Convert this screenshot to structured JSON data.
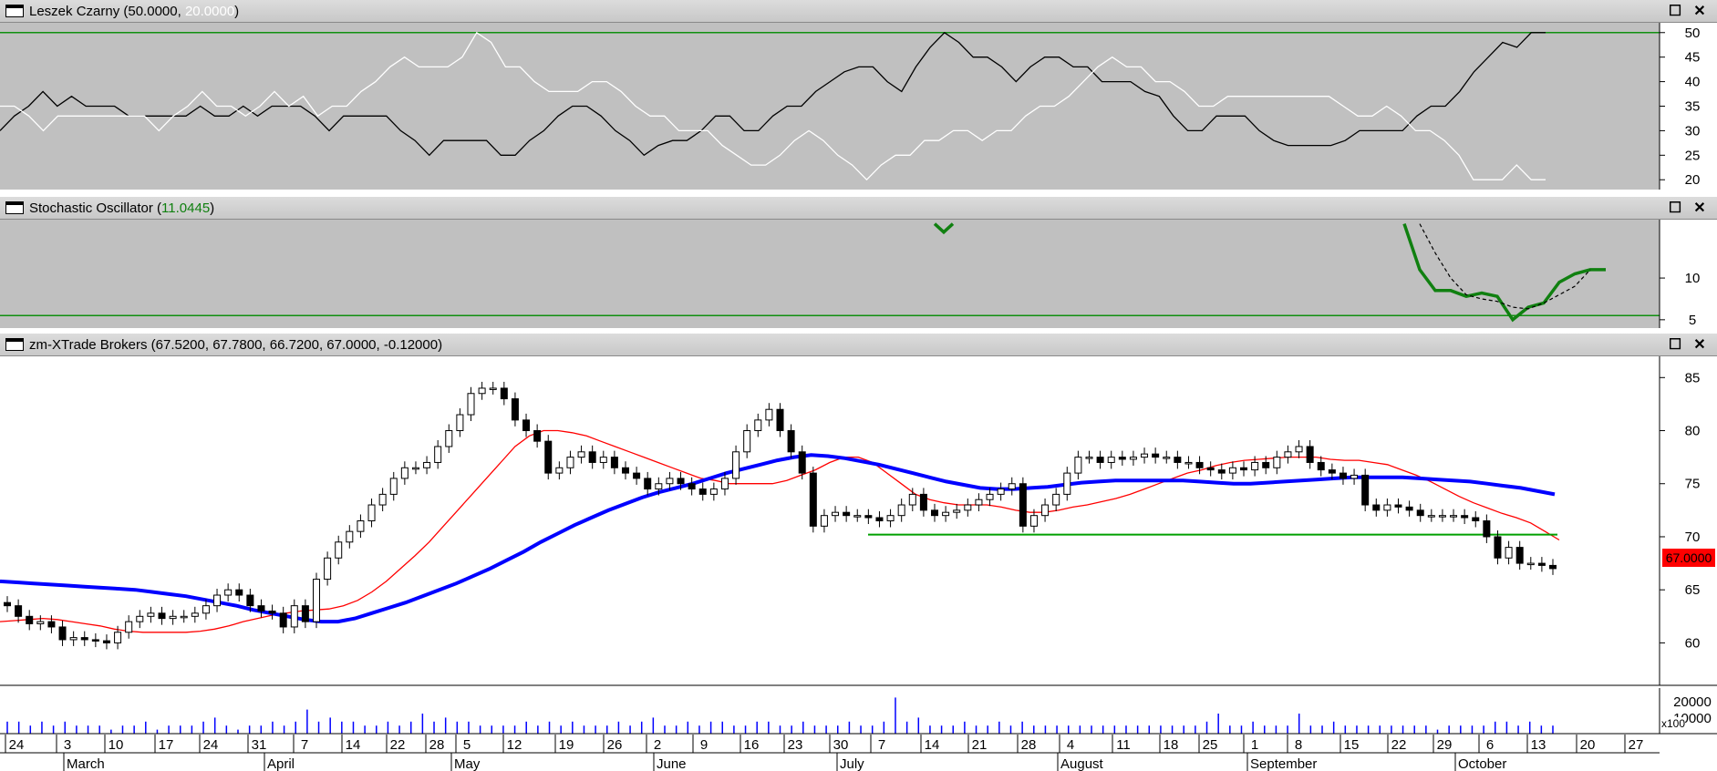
{
  "colors": {
    "panel_gray": "#c0c0c0",
    "price_bg": "#ffffff",
    "adx_plus": "#000000",
    "adx_minus": "#ffffff",
    "ref_line": "#109010",
    "stoch_k": "#108010",
    "stoch_d": "#000000",
    "ma_fast": "#ff0000",
    "ma_slow": "#0000ff",
    "support": "#00a000",
    "volume": "#0000ff",
    "last_price_bg": "#ff0000",
    "title_green": "#108010",
    "title_white": "#ffffff"
  },
  "panels": [
    {
      "id": "leszek",
      "title": "Leszek Czarny (50.0000,",
      "title_value2": "20.0000",
      "title_close": ")",
      "icons": [
        "maximize-icon",
        "close-icon"
      ]
    },
    {
      "id": "stochastic",
      "title": "Stochastic Oscillator (",
      "title_value": "11.0445",
      "title_close": ")",
      "icons": [
        "maximize-icon",
        "close-icon"
      ]
    },
    {
      "id": "price",
      "title": "zm-XTrade Brokers (67.5200, 67.7800, 66.7200, 67.0000, -0.12000)",
      "icons": [
        "maximize-icon",
        "close-icon"
      ]
    }
  ],
  "buttons": {
    "maximize": "☐",
    "close": "✕"
  },
  "last_price_label": "67.0000",
  "volume_scale_label": "x100",
  "chart_data": [
    {
      "panel": "leszek",
      "type": "line",
      "title": "Leszek Czarny (50.0000, 20.0000)",
      "ylim": [
        18,
        52
      ],
      "yticks": [
        20,
        25,
        30,
        35,
        40,
        45,
        50
      ],
      "reference_lines": [
        50
      ],
      "series": [
        {
          "role": "black",
          "values": [
            30,
            33,
            35,
            38,
            35,
            37,
            35,
            35,
            35,
            33,
            33,
            33,
            33,
            33,
            35,
            33,
            33,
            35,
            33,
            35,
            35,
            35,
            33,
            30,
            33,
            33,
            33,
            33,
            30,
            28,
            25,
            28,
            28,
            28,
            28,
            25,
            25,
            28,
            30,
            33,
            35,
            35,
            33,
            30,
            28,
            25,
            27,
            28,
            28,
            30,
            33,
            33,
            30,
            30,
            33,
            35,
            35,
            38,
            40,
            42,
            43,
            43,
            40,
            38,
            43,
            47,
            50,
            48,
            45,
            45,
            43,
            40,
            43,
            45,
            45,
            43,
            43,
            40,
            40,
            40,
            38,
            37,
            33,
            30,
            30,
            33,
            33,
            33,
            30,
            28,
            27,
            27,
            27,
            27,
            28,
            30,
            30,
            30,
            30,
            33,
            35,
            35,
            38,
            42,
            45,
            48,
            47,
            50,
            50
          ]
        },
        {
          "role": "white",
          "values": [
            35,
            35,
            33,
            30,
            33,
            33,
            33,
            33,
            33,
            33,
            33,
            30,
            33,
            35,
            38,
            35,
            35,
            33,
            35,
            38,
            35,
            37,
            33,
            35,
            35,
            38,
            40,
            43,
            45,
            43,
            43,
            43,
            45,
            50,
            48,
            43,
            43,
            40,
            38,
            38,
            38,
            40,
            40,
            38,
            35,
            33,
            33,
            30,
            30,
            30,
            27,
            25,
            23,
            23,
            25,
            28,
            30,
            28,
            25,
            23,
            20,
            23,
            25,
            25,
            28,
            28,
            30,
            30,
            28,
            30,
            30,
            33,
            35,
            35,
            37,
            40,
            43,
            45,
            43,
            43,
            40,
            40,
            38,
            35,
            35,
            37,
            37,
            37,
            37,
            37,
            37,
            37,
            37,
            35,
            33,
            33,
            35,
            33,
            30,
            30,
            28,
            25,
            20,
            20,
            20,
            23,
            20,
            20
          ]
        }
      ]
    },
    {
      "panel": "stochastic",
      "type": "line",
      "title": "Stochastic Oscillator (11.0445)",
      "ylim": [
        4,
        17
      ],
      "yticks": [
        5,
        10
      ],
      "reference_lines": [
        5.5
      ],
      "series": [
        {
          "role": "%K",
          "segments": [
            {
              "start_index": 66,
              "values": [
                16.5,
                15.5,
                16.5
              ]
            },
            {
              "start_index": 99,
              "values": [
                16.5,
                11,
                8.5,
                8.5,
                7.8,
                8.2,
                7.8,
                5,
                6.5,
                7,
                9.5,
                10.5,
                11,
                11
              ]
            }
          ]
        },
        {
          "role": "%D",
          "segments": [
            {
              "start_index": 100,
              "values": [
                16.5,
                13,
                10,
                8,
                7.5,
                7.2,
                6.5,
                6.3,
                7,
                8,
                9,
                11
              ]
            }
          ]
        }
      ]
    },
    {
      "panel": "price",
      "type": "candlestick",
      "title": "zm-XTrade Brokers",
      "ylim": [
        56,
        87
      ],
      "yticks": [
        60,
        65,
        70,
        75,
        80,
        85
      ],
      "last_price": 67.0,
      "support_line": {
        "value": 70.2,
        "from_index": 61,
        "to_index": 109
      },
      "moving_averages": [
        {
          "role": "fast",
          "values": [
            62,
            62.1,
            62.2,
            62.3,
            62.2,
            62,
            61.8,
            61.6,
            61.3,
            61.1,
            61,
            61,
            61,
            61,
            61.1,
            61.3,
            61.6,
            62,
            62.3,
            62.6,
            62.8,
            63,
            63.1,
            63.2,
            63.5,
            64,
            64.8,
            65.8,
            67,
            68.2,
            69.5,
            71,
            72.5,
            74,
            75.5,
            77,
            78.5,
            79.5,
            80,
            80,
            79.8,
            79.5,
            79,
            78.5,
            78,
            77.5,
            77,
            76.5,
            76,
            75.5,
            75.3,
            75,
            75,
            75,
            75,
            75.3,
            75.8,
            76.3,
            77,
            77.5,
            77.5,
            77,
            76,
            75,
            74,
            73.5,
            73.2,
            73,
            73,
            73,
            72.8,
            72.5,
            72.3,
            72.3,
            72.5,
            72.8,
            73,
            73.3,
            73.6,
            74,
            74.5,
            75,
            75.5,
            76,
            76.3,
            76.7,
            77,
            77.2,
            77.3,
            77.4,
            77.5,
            77.5,
            77.5,
            77.3,
            77.2,
            77.2,
            77,
            76.8,
            76.3,
            75.8,
            75.2,
            74.5,
            73.8,
            73.2,
            72.7,
            72.2,
            71.8,
            71.3,
            70.5,
            69.7
          ]
        },
        {
          "role": "slow",
          "values": [
            65.8,
            65.7,
            65.6,
            65.5,
            65.4,
            65.3,
            65.2,
            65.1,
            65,
            64.8,
            64.6,
            64.4,
            64.1,
            63.8,
            63.5,
            63.1,
            62.8,
            62.5,
            62.2,
            62,
            62,
            62.3,
            62.8,
            63.3,
            63.8,
            64.4,
            65,
            65.6,
            66.3,
            67,
            67.8,
            68.6,
            69.5,
            70.3,
            71.1,
            71.8,
            72.5,
            73.1,
            73.7,
            74.2,
            74.6,
            75,
            75.5,
            76,
            76.4,
            76.8,
            77.2,
            77.5,
            77.7,
            77.6,
            77.4,
            77.1,
            76.8,
            76.4,
            76,
            75.6,
            75.2,
            74.9,
            74.6,
            74.5,
            74.5,
            74.6,
            74.7,
            74.9,
            75.1,
            75.2,
            75.3,
            75.3,
            75.3,
            75.3,
            75.3,
            75.2,
            75.1,
            75,
            75,
            75.1,
            75.2,
            75.3,
            75.4,
            75.5,
            75.6,
            75.6,
            75.6,
            75.6,
            75.5,
            75.4,
            75.3,
            75.2,
            75,
            74.8,
            74.6,
            74.3,
            74
          ]
        }
      ],
      "closes": [
        63.5,
        62.5,
        61.8,
        62,
        61.5,
        60.3,
        60.5,
        60.3,
        60.2,
        60,
        61,
        62,
        62.5,
        62.8,
        62.3,
        62.5,
        62.5,
        62.8,
        63.5,
        64.5,
        65,
        64.5,
        63.5,
        63,
        62.8,
        61.5,
        63.5,
        62,
        66,
        68,
        69.5,
        70.5,
        71.5,
        73,
        74,
        75.5,
        76.5,
        76.5,
        77,
        78.5,
        80,
        81.5,
        83.5,
        84,
        84,
        83,
        81,
        80,
        79,
        76,
        76.5,
        77.5,
        78,
        77,
        77.5,
        76.5,
        76,
        75.5,
        74.5,
        75,
        75.5,
        75,
        74.5,
        74,
        74.5,
        75.5,
        78,
        80,
        81,
        82,
        80,
        78,
        76,
        71,
        72,
        72.3,
        72,
        72,
        71.8,
        71.5,
        72,
        73,
        74,
        72.5,
        72,
        72.3,
        72.5,
        73,
        73.5,
        74,
        74.5,
        75,
        71,
        72,
        73,
        74,
        76,
        77.5,
        77.5,
        77,
        77.5,
        77.3,
        77.5,
        77.8,
        77.5,
        77.5,
        77,
        77,
        76.5,
        76.3,
        76,
        76.5,
        76.3,
        77,
        76.5,
        77.5,
        78,
        78.5,
        77,
        76.3,
        76,
        75.5,
        75.8,
        73,
        72.5,
        73,
        72.8,
        72.5,
        72,
        72,
        72,
        72,
        71.8,
        71.5,
        70,
        68,
        69,
        67.5,
        67.5,
        67.3,
        67
      ]
    },
    {
      "panel": "volume",
      "type": "bar",
      "values": [
        3,
        3,
        2,
        3,
        2,
        3,
        2,
        2,
        2,
        1,
        2,
        2,
        3,
        1,
        2,
        2,
        2,
        3,
        4,
        2,
        1,
        2,
        2,
        3,
        2,
        3,
        6,
        3,
        4,
        3,
        3,
        2,
        2,
        3,
        2,
        3,
        5,
        3,
        4,
        3,
        3,
        2,
        2,
        2,
        2,
        3,
        2,
        3,
        2,
        3,
        2,
        2,
        2,
        3,
        2,
        3,
        4,
        2,
        2,
        3,
        2,
        3,
        3,
        2,
        2,
        3,
        3,
        2,
        2,
        3,
        2,
        2,
        2,
        3,
        2,
        2,
        3,
        9,
        3,
        4,
        2,
        2,
        2,
        3,
        2,
        2,
        3,
        2,
        3,
        2,
        2,
        2,
        2,
        2,
        2,
        2,
        2,
        2,
        2,
        2,
        2,
        2,
        2,
        2,
        3,
        5,
        2,
        2,
        3,
        2,
        2,
        2,
        5,
        2,
        2,
        3,
        2,
        2,
        2,
        2,
        2,
        2,
        2,
        2,
        1,
        2,
        2,
        2,
        2,
        3,
        3,
        2,
        3,
        2,
        2
      ]
    }
  ],
  "date_axis": {
    "day_labels": [
      "24",
      "3",
      "10",
      "17",
      "24",
      "31",
      "7",
      "14",
      "22",
      "28",
      "5",
      "12",
      "19",
      "26",
      "2",
      "9",
      "16",
      "23",
      "30",
      "7",
      "14",
      "21",
      "28",
      "4",
      "11",
      "18",
      "25",
      "1",
      "8",
      "15",
      "22",
      "29",
      "6",
      "13",
      "20",
      "27"
    ],
    "month_labels": [
      "March",
      "April",
      "May",
      "June",
      "July",
      "August",
      "September",
      "October"
    ]
  }
}
